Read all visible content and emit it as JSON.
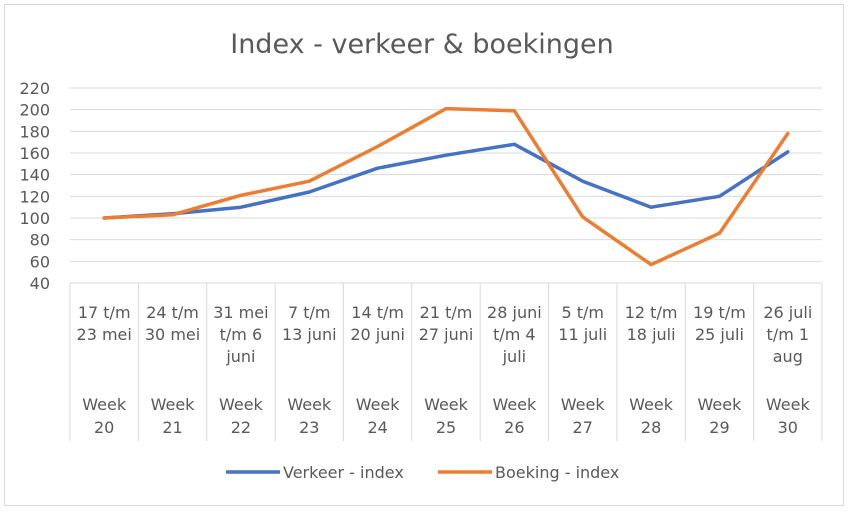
{
  "chart_data": {
    "type": "line",
    "title": "Index - verkeer & boekingen",
    "xlabel": "",
    "ylabel": "",
    "ylim": [
      40,
      220
    ],
    "yticks": [
      40,
      60,
      80,
      100,
      120,
      140,
      160,
      180,
      200,
      220
    ],
    "grid": true,
    "legend_position": "bottom",
    "categories": [
      {
        "lines": [
          "17 t/m",
          "23 mei"
        ],
        "week": [
          "Week",
          "20"
        ]
      },
      {
        "lines": [
          "24 t/m",
          "30 mei"
        ],
        "week": [
          "Week",
          "21"
        ]
      },
      {
        "lines": [
          "31 mei",
          "t/m 6",
          "juni"
        ],
        "week": [
          "Week",
          "22"
        ]
      },
      {
        "lines": [
          "7 t/m",
          "13 juni"
        ],
        "week": [
          "Week",
          "23"
        ]
      },
      {
        "lines": [
          "14 t/m",
          "20 juni"
        ],
        "week": [
          "Week",
          "24"
        ]
      },
      {
        "lines": [
          "21 t/m",
          "27 juni"
        ],
        "week": [
          "Week",
          "25"
        ]
      },
      {
        "lines": [
          "28 juni",
          "t/m 4",
          "juli"
        ],
        "week": [
          "Week",
          "26"
        ]
      },
      {
        "lines": [
          "5 t/m",
          "11 juli"
        ],
        "week": [
          "Week",
          "27"
        ]
      },
      {
        "lines": [
          "12 t/m",
          "18 juli"
        ],
        "week": [
          "Week",
          "28"
        ]
      },
      {
        "lines": [
          "19 t/m",
          "25 juli"
        ],
        "week": [
          "Week",
          "29"
        ]
      },
      {
        "lines": [
          "26 juli",
          "t/m 1",
          "aug"
        ],
        "week": [
          "Week",
          "30"
        ]
      }
    ],
    "series": [
      {
        "name": "Verkeer - index",
        "color": "#4472c4",
        "values": [
          100,
          104,
          110,
          124,
          146,
          158,
          168,
          134,
          110,
          120,
          161
        ]
      },
      {
        "name": "Boeking - index",
        "color": "#ed7d31",
        "values": [
          100,
          103,
          121,
          134,
          166,
          201,
          199,
          101,
          57,
          86,
          178
        ]
      }
    ]
  },
  "colors": {
    "grid": "#d9d9d9",
    "text": "#595959"
  }
}
